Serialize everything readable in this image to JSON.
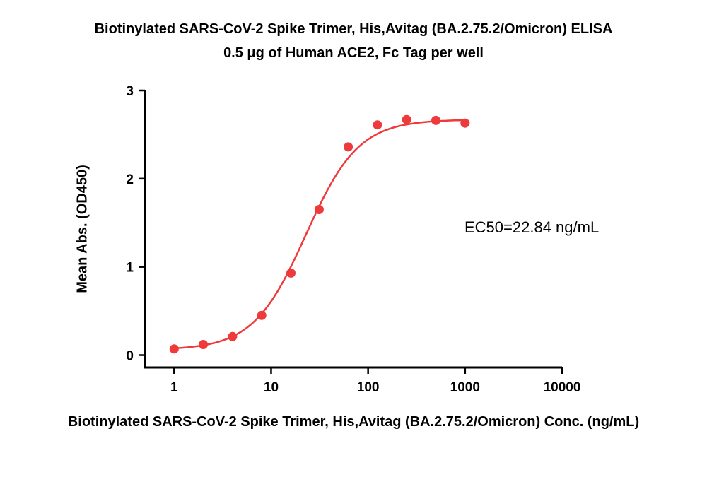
{
  "chart_data": {
    "type": "scatter",
    "title": "Biotinylated SARS-CoV-2 Spike Trimer, His,Avitag (BA.2.75.2/Omicron) ELISA",
    "subtitle": "0.5 μg of Human ACE2, Fc Tag per well",
    "xlabel": "Biotinylated SARS-CoV-2 Spike Trimer, His,Avitag (BA.2.75.2/Omicron) Conc. (ng/mL)",
    "ylabel": "Mean Abs. (OD450)",
    "annotation": "EC50=22.84 ng/mL",
    "x_scale": "log",
    "grid": false,
    "legend": "none",
    "x": [
      1,
      2,
      4,
      8,
      16,
      31.25,
      62.5,
      125,
      250,
      500,
      1000
    ],
    "y": [
      0.07,
      0.12,
      0.21,
      0.45,
      0.93,
      1.65,
      2.36,
      2.61,
      2.67,
      2.66,
      2.63
    ],
    "fit_4pl": {
      "bottom": 0.06,
      "top": 2.67,
      "ec50": 22.84,
      "hill": 1.6
    },
    "x_ticks": [
      1,
      10,
      100,
      1000,
      10000
    ],
    "x_tick_labels": [
      "1",
      "10",
      "100",
      "1000",
      "10000"
    ],
    "y_ticks": [
      0,
      1,
      2,
      3
    ],
    "y_tick_labels": [
      "0",
      "1",
      "2",
      "3"
    ],
    "x_axis_range": [
      0.5,
      10000
    ],
    "y_axis_range": [
      -0.14,
      3
    ],
    "point_color": "#ee3a3a",
    "line_color": "#ee3a3a",
    "axis_color": "#000000"
  }
}
